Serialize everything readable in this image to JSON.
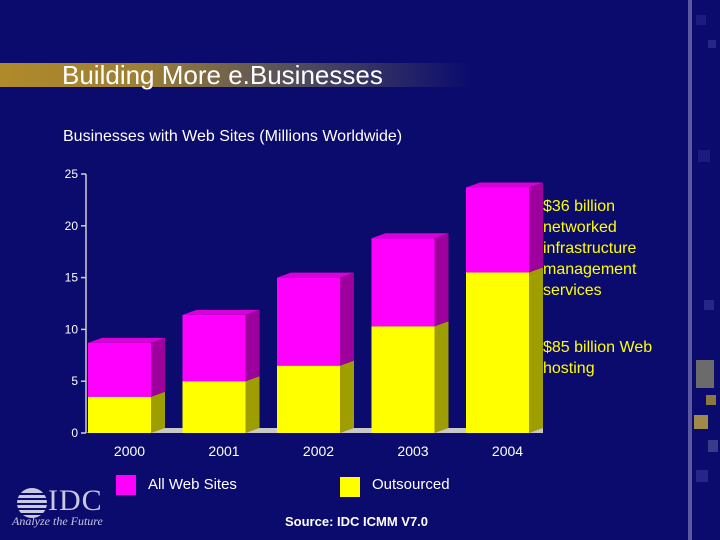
{
  "slide": {
    "title": "Building More e.Businesses",
    "subtitle": "Businesses with Web Sites (Millions Worldwide)",
    "source": "Source: IDC ICMM V7.0"
  },
  "logo": {
    "name": "IDC",
    "tagline": "Analyze the Future"
  },
  "legend": [
    {
      "label": "All Web Sites",
      "color": "#ff00ff"
    },
    {
      "label": "Outsourced",
      "color": "#ffff00"
    }
  ],
  "annotations": {
    "top": "$36 billion networked infrastructure management services",
    "bottom": "$85 billion Web hosting"
  },
  "chart_data": {
    "type": "bar",
    "stacked": true,
    "categories": [
      "2000",
      "2001",
      "2002",
      "2003",
      "2004"
    ],
    "series": [
      {
        "name": "Outsourced",
        "color": "#ffff00",
        "values": [
          3.5,
          5.0,
          6.5,
          10.3,
          15.5
        ]
      },
      {
        "name": "All Web Sites",
        "color": "#ff00ff",
        "values": [
          5.2,
          6.4,
          8.5,
          8.5,
          8.2
        ]
      }
    ],
    "ylim": [
      0,
      25
    ],
    "yticks": [
      0,
      5,
      10,
      15,
      20,
      25
    ],
    "grid": false
  }
}
